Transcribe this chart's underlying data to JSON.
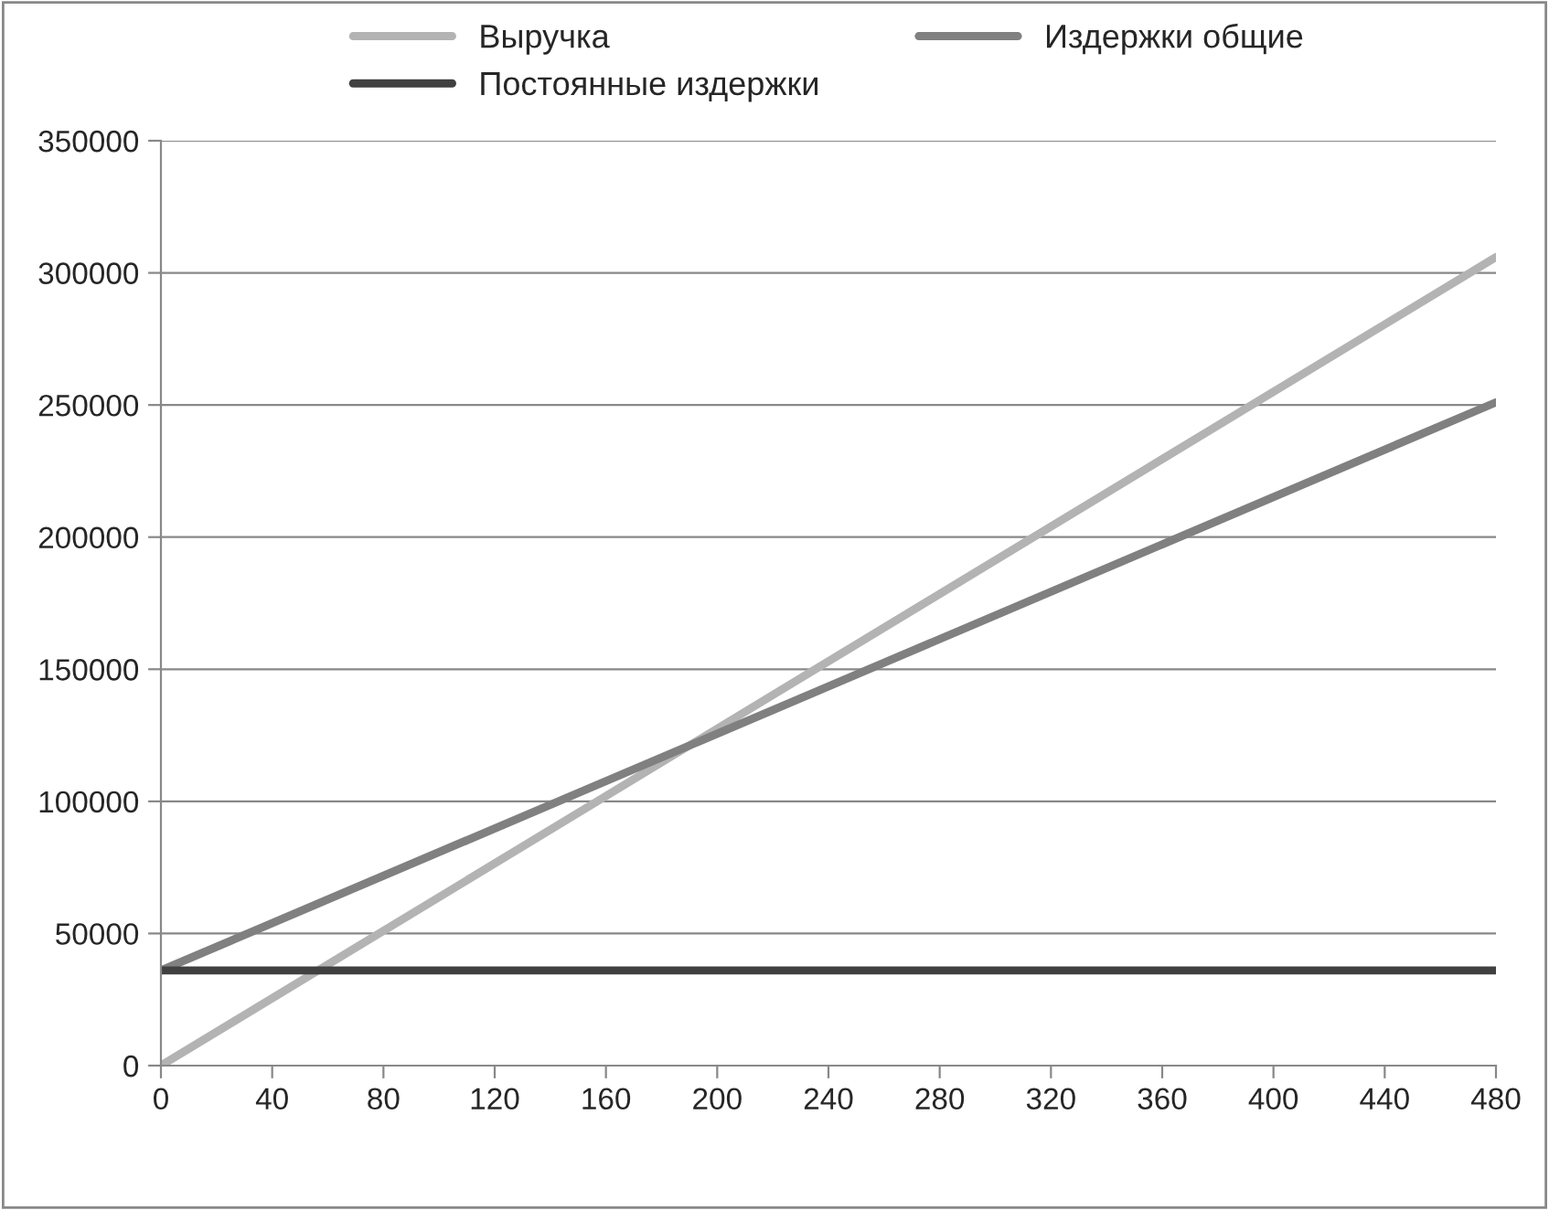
{
  "chart_data": {
    "type": "line",
    "series": [
      {
        "name": "Выручка",
        "color": "#b3b3b3",
        "values": [
          0,
          306000
        ]
      },
      {
        "name": "Издержки общие",
        "color": "#808080",
        "values": [
          36000,
          251000
        ]
      },
      {
        "name": "Постоянные издержки",
        "color": "#404040",
        "values": [
          36000,
          36000
        ]
      }
    ],
    "x": [
      0,
      480
    ],
    "xlim": [
      0,
      480
    ],
    "xticks": [
      0,
      40,
      80,
      120,
      160,
      200,
      240,
      280,
      320,
      360,
      400,
      440,
      480
    ],
    "ylim": [
      0,
      350000
    ],
    "yticks": [
      0,
      50000,
      100000,
      150000,
      200000,
      250000,
      300000,
      350000
    ],
    "grid": "y",
    "legend": "top",
    "marker": "none",
    "line_style": "solid"
  }
}
